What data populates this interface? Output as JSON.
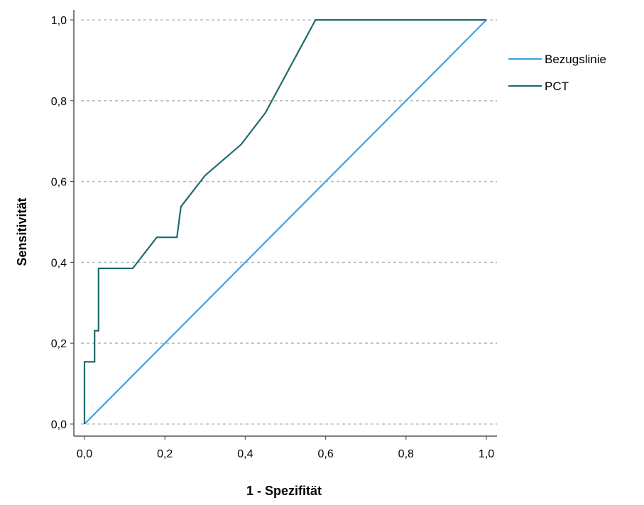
{
  "chart_data": {
    "type": "line",
    "title": "",
    "xlabel": "1 - Spezifität",
    "ylabel": "Sensitivität",
    "xlim": [
      0,
      1
    ],
    "ylim": [
      0,
      1
    ],
    "x_ticks": [
      0,
      0.2,
      0.4,
      0.6,
      0.8,
      1.0
    ],
    "x_tick_labels": [
      "0,0",
      "0,2",
      "0,4",
      "0,6",
      "0,8",
      "1,0"
    ],
    "y_ticks": [
      0,
      0.2,
      0.4,
      0.6,
      0.8,
      1.0
    ],
    "y_tick_labels": [
      "0,0",
      "0,2",
      "0,4",
      "0,6",
      "0,8",
      "1,0"
    ],
    "grid": "horizontal dashed",
    "legend_position": "right",
    "series": [
      {
        "name": "Bezugslinie",
        "color": "#3ba3e0",
        "x": [
          0,
          1
        ],
        "y": [
          0,
          1
        ]
      },
      {
        "name": "PCT",
        "color": "#1f6b6b",
        "x": [
          0,
          0,
          0.025,
          0.025,
          0.035,
          0.035,
          0.12,
          0.18,
          0.23,
          0.24,
          0.3,
          0.39,
          0.45,
          0.575,
          1.0
        ],
        "y": [
          0,
          0.154,
          0.154,
          0.231,
          0.231,
          0.385,
          0.385,
          0.462,
          0.462,
          0.538,
          0.615,
          0.692,
          0.77,
          1.0,
          1.0
        ]
      }
    ]
  }
}
